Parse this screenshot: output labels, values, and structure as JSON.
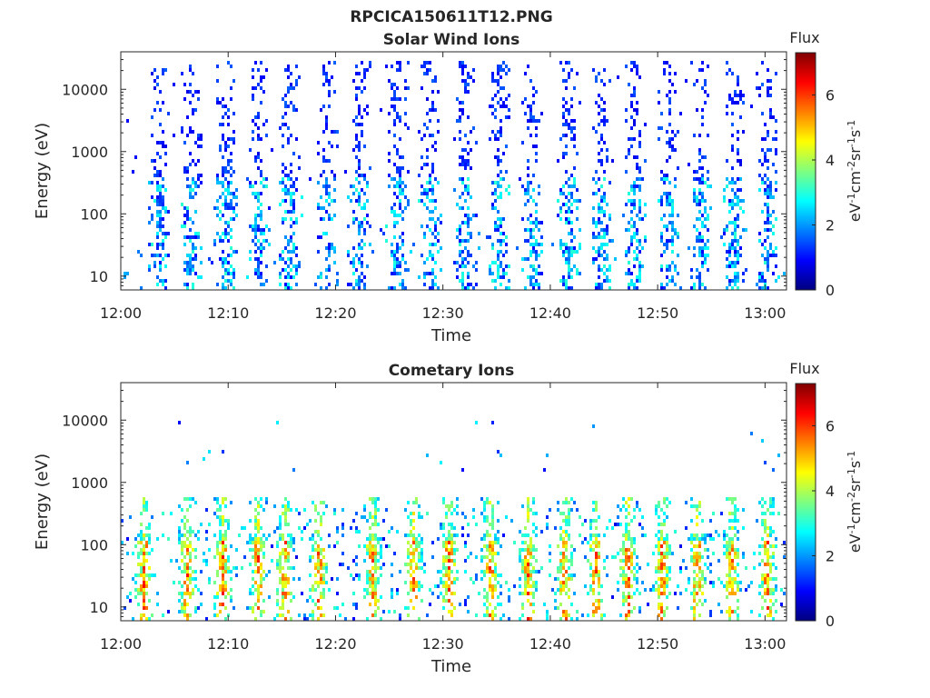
{
  "figure_title": "RPCICA150611T12.PNG",
  "colors": {
    "axis": "#262626",
    "colormap": [
      "#00007f",
      "#0000ff",
      "#007fff",
      "#00ffff",
      "#7fff7f",
      "#ffff00",
      "#ff7f00",
      "#ff0000",
      "#7f0000"
    ]
  },
  "chart_data": [
    {
      "type": "heatmap",
      "title": "Solar Wind Ions",
      "xlabel": "Time",
      "ylabel": "Energy (eV)",
      "x_ticks": [
        "12:00",
        "12:10",
        "12:20",
        "12:30",
        "12:40",
        "12:50",
        "13:00"
      ],
      "x_range_minutes": [
        0,
        62
      ],
      "y_scale": "log",
      "y_ticks": [
        {
          "value": 10,
          "label": "10"
        },
        {
          "value": 100,
          "label": "100"
        },
        {
          "value": 1000,
          "label": "1000"
        },
        {
          "value": 10000,
          "label": "10000"
        }
      ],
      "y_range": [
        6,
        40000
      ],
      "colorbar": {
        "title": "Flux",
        "label": "eV-1cm-2sr-1s-1",
        "range": [
          0,
          7.3
        ],
        "ticks": [
          0,
          2,
          4,
          6
        ]
      },
      "grid": false,
      "bursts_minutes": [
        3.6,
        6.6,
        9.8,
        12.8,
        15.8,
        19.3,
        22.3,
        25.8,
        28.8,
        32.1,
        35.3,
        38.4,
        41.8,
        44.9,
        47.9,
        51.1,
        54.1,
        57.3,
        60.3
      ]
    },
    {
      "type": "heatmap",
      "title": "Cometary Ions",
      "xlabel": "Time",
      "ylabel": "Energy (eV)",
      "x_ticks": [
        "12:00",
        "12:10",
        "12:20",
        "12:30",
        "12:40",
        "12:50",
        "13:00"
      ],
      "x_range_minutes": [
        0,
        62
      ],
      "y_scale": "log",
      "y_ticks": [
        {
          "value": 10,
          "label": "10"
        },
        {
          "value": 100,
          "label": "100"
        },
        {
          "value": 1000,
          "label": "1000"
        },
        {
          "value": 10000,
          "label": "10000"
        }
      ],
      "y_range": [
        6,
        40000
      ],
      "colorbar": {
        "title": "Flux",
        "label": "eV-1cm-2sr-1s-1",
        "range": [
          0,
          7.3
        ],
        "ticks": [
          0,
          2,
          4,
          6
        ]
      },
      "grid": false,
      "bursts_minutes": [
        2.2,
        6.2,
        9.5,
        12.8,
        15.3,
        18.5,
        23.5,
        27.3,
        30.6,
        34.5,
        38.0,
        41.4,
        44.3,
        47.3,
        50.5,
        53.8,
        57.0,
        60.3
      ]
    }
  ]
}
